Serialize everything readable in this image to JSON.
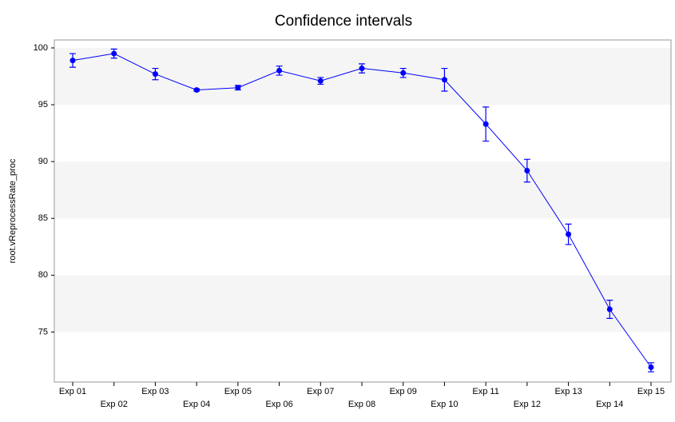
{
  "chart_data": {
    "type": "line",
    "title": "Confidence intervals",
    "y_label": "root.vReprocessRate_proc",
    "categories": [
      "Exp 01",
      "Exp 02",
      "Exp 03",
      "Exp 04",
      "Exp 05",
      "Exp 06",
      "Exp 07",
      "Exp 08",
      "Exp 09",
      "Exp 10",
      "Exp 11",
      "Exp 12",
      "Exp 13",
      "Exp 14",
      "Exp 15"
    ],
    "series": [
      {
        "color": "#0000ff",
        "values": [
          98.9,
          99.5,
          97.7,
          96.3,
          96.5,
          98.0,
          97.1,
          98.2,
          97.8,
          97.2,
          93.3,
          89.2,
          83.6,
          77.0,
          71.9
        ],
        "errors": [
          0.6,
          0.4,
          0.5,
          0.1,
          0.2,
          0.4,
          0.3,
          0.4,
          0.4,
          1.0,
          1.5,
          1.0,
          0.9,
          0.8,
          0.4
        ]
      }
    ],
    "ylim": [
      70.6,
      100.7
    ],
    "yticks": [
      75,
      80,
      85,
      90,
      95,
      100
    ],
    "banded_grid": true
  }
}
